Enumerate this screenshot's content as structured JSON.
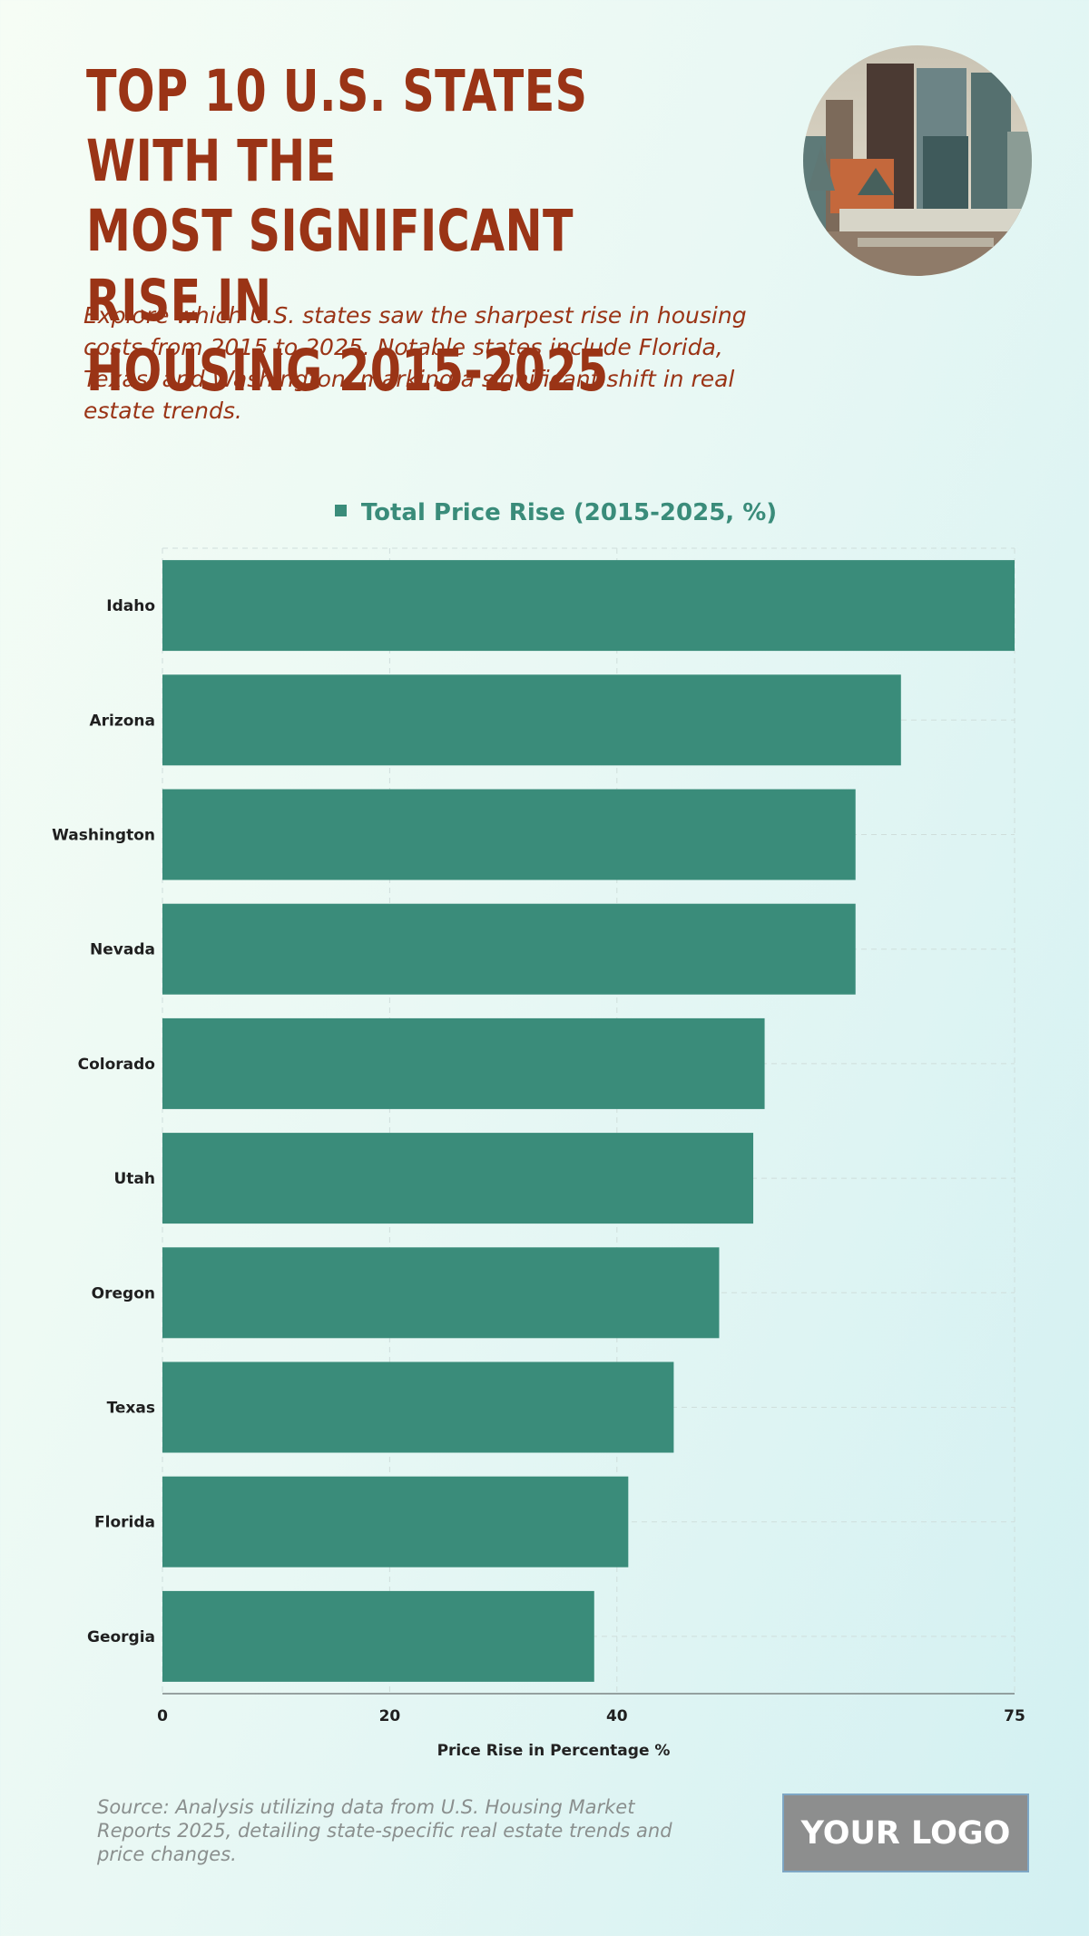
{
  "header": {
    "title": "Top 10 U.S. States with the\nMost Significant Rise in\nHousing 2015-2025",
    "subtitle": "Explore which U.S. states saw the sharpest rise in housing costs from 2015 to 2025. Notable states include Florida, Texas, and Washington, marking a significant shift in real estate trends."
  },
  "chart_data": {
    "type": "bar",
    "orientation": "horizontal",
    "categories": [
      "Idaho",
      "Arizona",
      "Washington",
      "Nevada",
      "Colorado",
      "Utah",
      "Oregon",
      "Texas",
      "Florida",
      "Georgia"
    ],
    "series": [
      {
        "name": "Total Price Rise (2015-2025, %)",
        "values": [
          75,
          65,
          61,
          61,
          53,
          52,
          49,
          45,
          41,
          38
        ]
      }
    ],
    "xlabel": "Price Rise in Percentage %",
    "ylabel": "",
    "xlim": [
      0,
      75
    ],
    "xticks": [
      0,
      20,
      40,
      75
    ],
    "grid": true,
    "legend_position": "top-center",
    "bar_color": "#3a8c7a"
  },
  "footer": {
    "source": "Source: Analysis utilizing data from U.S. Housing Market Reports 2025, detailing state-specific real estate trends and price changes.",
    "logo_text": "YOUR LOGO"
  }
}
